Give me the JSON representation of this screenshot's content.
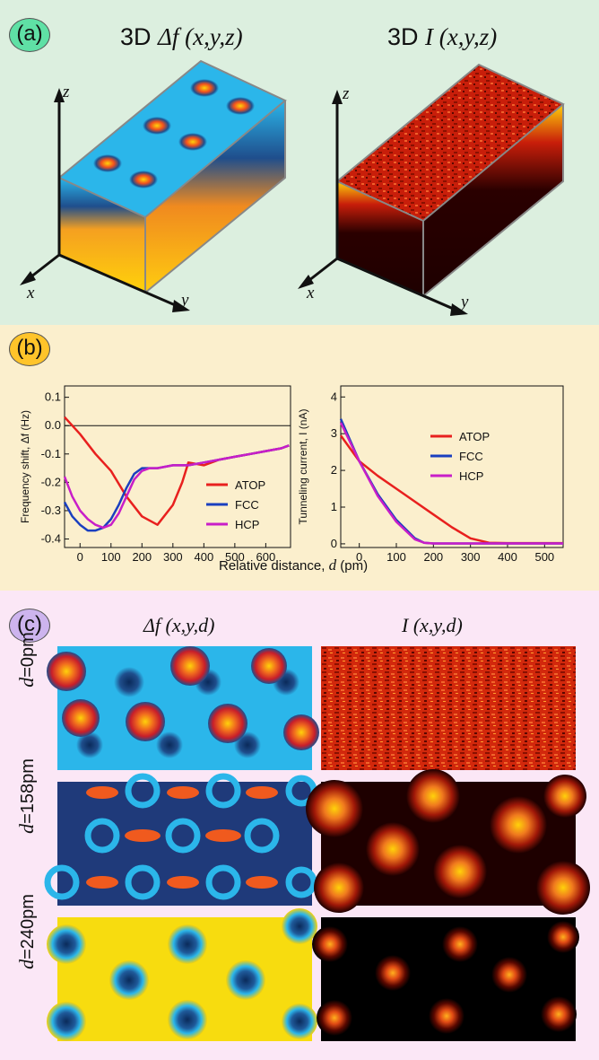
{
  "panel_a": {
    "tag": "(a)",
    "left_title_prefix": "3D ",
    "left_title_func": "Δf (x,y,z)",
    "right_title_prefix": "3D ",
    "right_title_func": "I (x,y,z)",
    "axis_x": "x",
    "axis_y": "y",
    "axis_z": "z",
    "colors": {
      "cyan": "#2bb6ea",
      "dark_blue": "#1f4e8c",
      "orange": "#f58a1f",
      "yellow": "#ffd20a",
      "dark_red": "#2a0000",
      "red": "#c81e0a"
    }
  },
  "panel_b": {
    "tag": "(b)",
    "xlabel_prefix": "Relative distance, ",
    "xlabel_var": "d",
    "xlabel_suffix": " (pm)"
  },
  "panel_c": {
    "tag": "(c)",
    "col1_title": "Δf (x,y,d)",
    "col2_title": "I (x,y,d)",
    "rows": [
      {
        "var": "d",
        "value": "=0pm"
      },
      {
        "var": "d",
        "value": "=158pm"
      },
      {
        "var": "d",
        "value": "=240pm"
      }
    ]
  },
  "chart_data": [
    {
      "type": "line",
      "title": "",
      "xlabel": "Relative distance, d (pm)",
      "ylabel": "Frequency shift, Δf (Hz)",
      "xlim": [
        -50,
        680
      ],
      "ylim": [
        -0.43,
        0.14
      ],
      "xticks": [
        "0",
        "100",
        "200",
        "300",
        "400",
        "500",
        "600"
      ],
      "yticks": [
        "0.1",
        "0.0",
        "-0.1",
        "-0.2",
        "-0.3",
        "-0.4"
      ],
      "legend": [
        "ATOP",
        "FCC",
        "HCP"
      ],
      "legend_position": "right",
      "series": [
        {
          "name": "ATOP",
          "color": "#e8201e",
          "x": [
            -50,
            0,
            50,
            100,
            150,
            200,
            250,
            300,
            330,
            350,
            400,
            450,
            500,
            550,
            600,
            650,
            675
          ],
          "y": [
            0.03,
            -0.03,
            -0.1,
            -0.16,
            -0.25,
            -0.32,
            -0.35,
            -0.28,
            -0.2,
            -0.13,
            -0.14,
            -0.12,
            -0.11,
            -0.1,
            -0.09,
            -0.08,
            -0.07
          ]
        },
        {
          "name": "FCC",
          "color": "#1a3fbf",
          "x": [
            -50,
            -25,
            0,
            25,
            50,
            75,
            100,
            125,
            150,
            175,
            200,
            225,
            250,
            300,
            350,
            400,
            450,
            500,
            550,
            600,
            650,
            675
          ],
          "y": [
            -0.27,
            -0.32,
            -0.35,
            -0.37,
            -0.37,
            -0.36,
            -0.33,
            -0.28,
            -0.22,
            -0.17,
            -0.15,
            -0.15,
            -0.15,
            -0.14,
            -0.14,
            -0.13,
            -0.12,
            -0.11,
            -0.1,
            -0.09,
            -0.08,
            -0.07
          ]
        },
        {
          "name": "HCP",
          "color": "#c81ec8",
          "x": [
            -50,
            -25,
            0,
            25,
            50,
            75,
            100,
            125,
            150,
            175,
            200,
            225,
            250,
            300,
            350,
            400,
            450,
            500,
            550,
            600,
            650,
            675
          ],
          "y": [
            -0.18,
            -0.25,
            -0.3,
            -0.33,
            -0.35,
            -0.36,
            -0.35,
            -0.31,
            -0.25,
            -0.19,
            -0.16,
            -0.15,
            -0.15,
            -0.14,
            -0.14,
            -0.13,
            -0.12,
            -0.11,
            -0.1,
            -0.09,
            -0.08,
            -0.07
          ]
        }
      ]
    },
    {
      "type": "line",
      "title": "",
      "xlabel": "Relative distance, d (pm)",
      "ylabel": "Tunneling current, I (nA)",
      "xlim": [
        -50,
        550
      ],
      "ylim": [
        -0.1,
        4.3
      ],
      "xticks": [
        "0",
        "100",
        "200",
        "300",
        "400",
        "500"
      ],
      "yticks": [
        "0",
        "1",
        "2",
        "3",
        "4"
      ],
      "legend": [
        "ATOP",
        "FCC",
        "HCP"
      ],
      "legend_position": "right",
      "series": [
        {
          "name": "ATOP",
          "color": "#e8201e",
          "x": [
            -50,
            0,
            50,
            100,
            150,
            200,
            250,
            300,
            350,
            400,
            450,
            500,
            550
          ],
          "y": [
            2.95,
            2.25,
            1.85,
            1.5,
            1.15,
            0.8,
            0.45,
            0.15,
            0.03,
            0.02,
            0.02,
            0.02,
            0.02
          ]
        },
        {
          "name": "FCC",
          "color": "#1a3fbf",
          "x": [
            -50,
            0,
            50,
            100,
            150,
            175,
            200,
            250,
            300,
            400,
            550
          ],
          "y": [
            3.4,
            2.25,
            1.35,
            0.65,
            0.15,
            0.03,
            0.01,
            0.01,
            0.01,
            0.01,
            0.01
          ]
        },
        {
          "name": "HCP",
          "color": "#c81ec8",
          "x": [
            -50,
            0,
            50,
            100,
            150,
            175,
            200,
            250,
            300,
            400,
            550
          ],
          "y": [
            3.3,
            2.25,
            1.3,
            0.6,
            0.12,
            0.03,
            0.01,
            0.01,
            0.01,
            0.01,
            0.01
          ]
        }
      ]
    }
  ]
}
